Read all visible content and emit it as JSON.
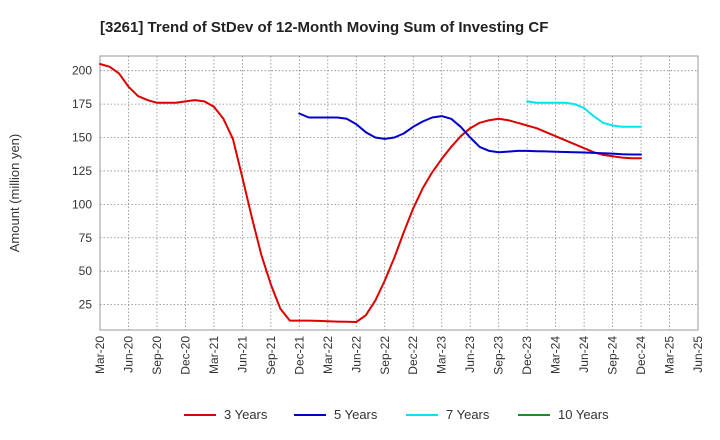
{
  "chart_data": {
    "type": "line",
    "title": "[3261]  Trend of StDev of 12-Month Moving Sum of Investing CF",
    "xlabel": "",
    "ylabel": "Amount (million yen)",
    "ylim": [
      6,
      211
    ],
    "yticks": [
      25,
      50,
      75,
      100,
      125,
      150,
      175,
      200
    ],
    "xlim": [
      "2020-03",
      "2025-06"
    ],
    "xticks": [
      "Mar-20",
      "Jun-20",
      "Sep-20",
      "Dec-20",
      "Mar-21",
      "Jun-21",
      "Sep-21",
      "Dec-21",
      "Mar-22",
      "Jun-22",
      "Sep-22",
      "Dec-22",
      "Mar-23",
      "Jun-23",
      "Sep-23",
      "Dec-23",
      "Mar-24",
      "Jun-24",
      "Sep-24",
      "Dec-24",
      "Mar-25",
      "Jun-25"
    ],
    "grid": true,
    "legend_position": "bottom",
    "series": [
      {
        "name": "3 Years",
        "color": "#dd0000",
        "x": [
          "2020-03",
          "2020-04",
          "2020-05",
          "2020-06",
          "2020-07",
          "2020-08",
          "2020-09",
          "2020-10",
          "2020-11",
          "2020-12",
          "2021-01",
          "2021-02",
          "2021-03",
          "2021-04",
          "2021-05",
          "2021-06",
          "2021-07",
          "2021-08",
          "2021-09",
          "2021-10",
          "2021-11",
          "2021-12",
          "2022-01",
          "2022-02",
          "2022-03",
          "2022-04",
          "2022-05",
          "2022-06",
          "2022-07",
          "2022-08",
          "2022-09",
          "2022-10",
          "2022-11",
          "2022-12",
          "2023-01",
          "2023-02",
          "2023-03",
          "2023-04",
          "2023-05",
          "2023-06",
          "2023-07",
          "2023-08",
          "2023-09",
          "2023-10",
          "2023-11",
          "2023-12",
          "2024-01",
          "2024-02",
          "2024-03",
          "2024-04",
          "2024-05",
          "2024-06",
          "2024-07",
          "2024-08",
          "2024-09",
          "2024-10",
          "2024-11",
          "2024-12"
        ],
        "values": [
          205,
          203,
          198,
          188,
          181,
          178,
          176,
          176,
          176,
          177,
          178,
          177,
          173,
          164,
          149,
          120,
          90,
          62,
          40,
          22,
          13,
          13,
          13,
          12.8,
          12.5,
          12.3,
          12.1,
          12,
          17,
          28,
          43,
          60,
          79,
          97,
          112,
          124,
          134,
          143,
          151,
          157,
          161,
          163,
          164,
          163,
          161,
          159,
          157,
          154,
          151,
          148,
          145,
          142,
          139,
          137,
          136,
          135,
          134.5,
          134.5
        ]
      },
      {
        "name": "5 Years",
        "color": "#0000cc",
        "x": [
          "2021-12",
          "2022-01",
          "2022-02",
          "2022-03",
          "2022-04",
          "2022-05",
          "2022-06",
          "2022-07",
          "2022-08",
          "2022-09",
          "2022-10",
          "2022-11",
          "2022-12",
          "2023-01",
          "2023-02",
          "2023-03",
          "2023-04",
          "2023-05",
          "2023-06",
          "2023-07",
          "2023-08",
          "2023-09",
          "2023-10",
          "2023-11",
          "2023-12",
          "2024-01",
          "2024-02",
          "2024-03",
          "2024-04",
          "2024-05",
          "2024-06",
          "2024-07",
          "2024-08",
          "2024-09",
          "2024-10",
          "2024-11",
          "2024-12"
        ],
        "values": [
          168,
          165,
          165,
          165,
          165,
          164,
          160,
          154,
          150,
          149,
          150,
          153,
          158,
          162,
          165,
          166,
          164,
          158,
          150,
          143,
          140,
          139,
          139.5,
          140,
          140,
          139.8,
          139.6,
          139.4,
          139.2,
          139,
          138.8,
          138.5,
          138.2,
          138,
          137.5,
          137.3,
          137.3
        ]
      },
      {
        "name": "7 Years",
        "color": "#00e5ee",
        "x": [
          "2023-12",
          "2024-01",
          "2024-02",
          "2024-03",
          "2024-04",
          "2024-05",
          "2024-06",
          "2024-07",
          "2024-08",
          "2024-09",
          "2024-10",
          "2024-11",
          "2024-12"
        ],
        "values": [
          177,
          176,
          176,
          176,
          176,
          175,
          172,
          166,
          161,
          159,
          158,
          158,
          158
        ]
      },
      {
        "name": "10 Years",
        "color": "#228b22",
        "x": [],
        "values": []
      }
    ]
  }
}
